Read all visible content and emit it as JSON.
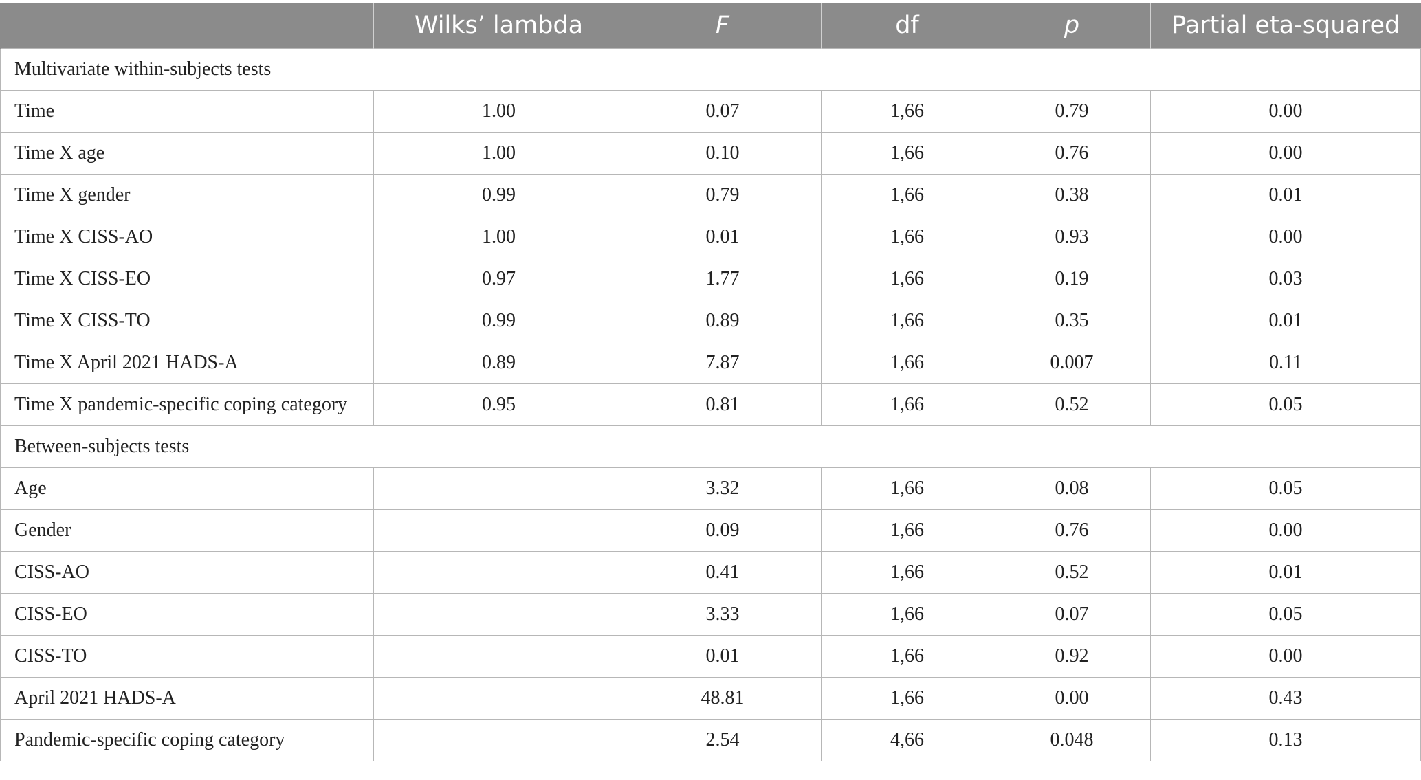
{
  "table": {
    "headers": [
      "",
      "Wilks’ lambda",
      "F",
      "df",
      "p",
      "Partial eta-squared"
    ],
    "sections": [
      {
        "title": "Multivariate within-subjects tests",
        "rows": [
          {
            "label": "Time",
            "wilks": "1.00",
            "f": "0.07",
            "df": "1,66",
            "p": "0.79",
            "eta": "0.00"
          },
          {
            "label": "Time X age",
            "wilks": "1.00",
            "f": "0.10",
            "df": "1,66",
            "p": "0.76",
            "eta": "0.00"
          },
          {
            "label": "Time X gender",
            "wilks": "0.99",
            "f": "0.79",
            "df": "1,66",
            "p": "0.38",
            "eta": "0.01"
          },
          {
            "label": "Time X CISS-AO",
            "wilks": "1.00",
            "f": "0.01",
            "df": "1,66",
            "p": "0.93",
            "eta": "0.00"
          },
          {
            "label": "Time X CISS-EO",
            "wilks": "0.97",
            "f": "1.77",
            "df": "1,66",
            "p": "0.19",
            "eta": "0.03"
          },
          {
            "label": "Time X CISS-TO",
            "wilks": "0.99",
            "f": "0.89",
            "df": "1,66",
            "p": "0.35",
            "eta": "0.01"
          },
          {
            "label": "Time X April 2021 HADS-A",
            "wilks": "0.89",
            "f": "7.87",
            "df": "1,66",
            "p": "0.007",
            "eta": "0.11"
          },
          {
            "label": "Time X pandemic-specific coping category",
            "wilks": "0.95",
            "f": "0.81",
            "df": "1,66",
            "p": "0.52",
            "eta": "0.05"
          }
        ]
      },
      {
        "title": "Between-subjects tests",
        "rows": [
          {
            "label": "Age",
            "wilks": "",
            "f": "3.32",
            "df": "1,66",
            "p": "0.08",
            "eta": "0.05"
          },
          {
            "label": "Gender",
            "wilks": "",
            "f": "0.09",
            "df": "1,66",
            "p": "0.76",
            "eta": "0.00"
          },
          {
            "label": "CISS-AO",
            "wilks": "",
            "f": "0.41",
            "df": "1,66",
            "p": "0.52",
            "eta": "0.01"
          },
          {
            "label": "CISS-EO",
            "wilks": "",
            "f": "3.33",
            "df": "1,66",
            "p": "0.07",
            "eta": "0.05"
          },
          {
            "label": "CISS-TO",
            "wilks": "",
            "f": "0.01",
            "df": "1,66",
            "p": "0.92",
            "eta": "0.00"
          },
          {
            "label": "April 2021 HADS-A",
            "wilks": "",
            "f": "48.81",
            "df": "1,66",
            "p": "0.00",
            "eta": "0.43"
          },
          {
            "label": "Pandemic-specific coping category",
            "wilks": "",
            "f": "2.54",
            "df": "4,66",
            "p": "0.048",
            "eta": "0.13"
          }
        ]
      }
    ]
  }
}
